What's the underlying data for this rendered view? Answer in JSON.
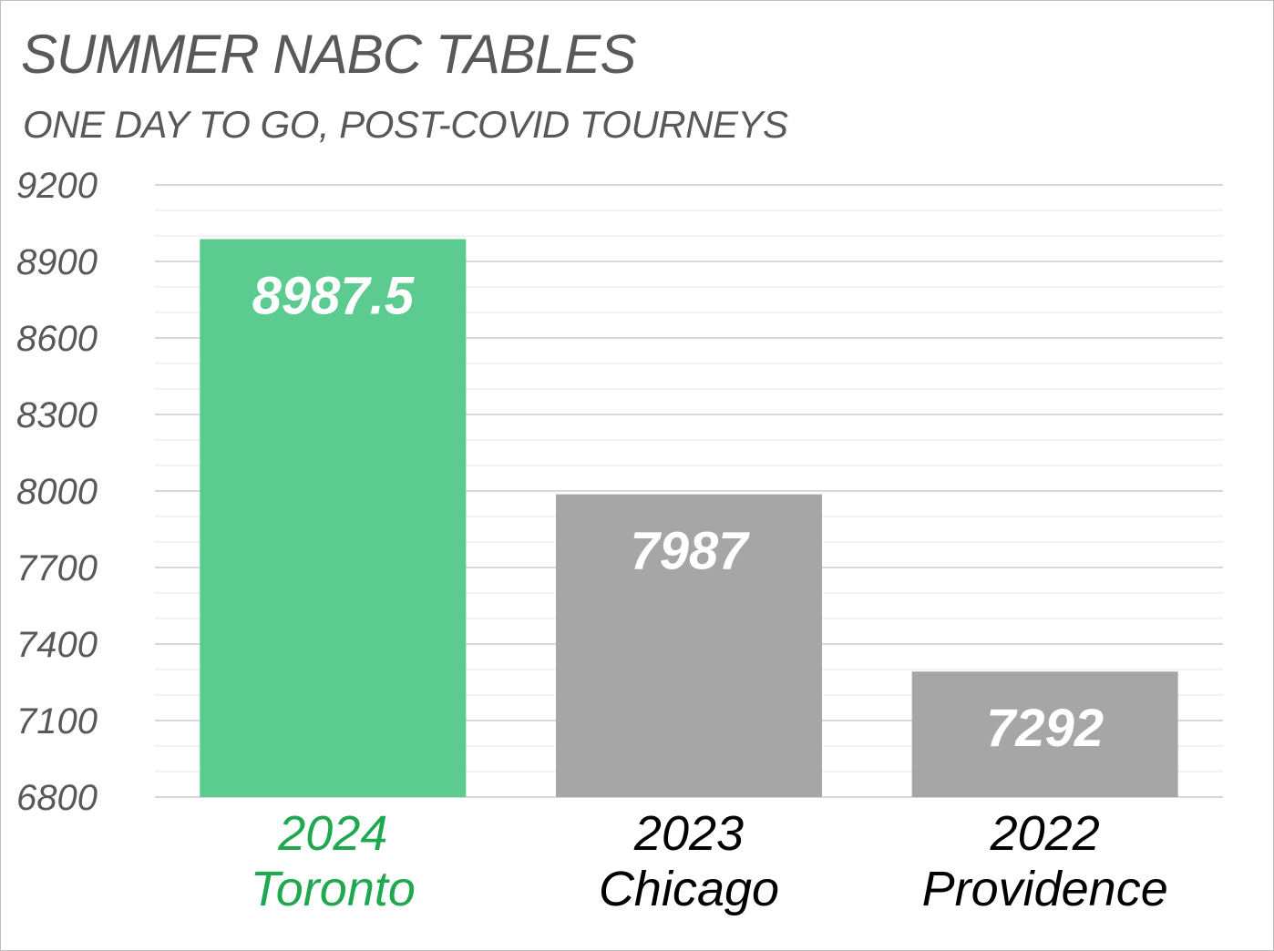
{
  "chart_data": {
    "type": "bar",
    "title": "SUMMER NABC TABLES",
    "subtitle": "ONE DAY TO GO, POST-COVID TOURNEYS",
    "categories": [
      [
        "2024",
        "Toronto"
      ],
      [
        "2023",
        "Chicago"
      ],
      [
        "2022",
        "Providence"
      ]
    ],
    "values": [
      8987.5,
      7987,
      7292
    ],
    "data_labels": [
      "8987.5",
      "7987",
      "7292"
    ],
    "ylim": [
      6800,
      9200
    ],
    "yticks": [
      6800,
      7100,
      7400,
      7700,
      8000,
      8300,
      8600,
      8900,
      9200
    ],
    "ytick_labels": [
      "6800",
      "7100",
      "7400",
      "7700",
      "8000",
      "8300",
      "8600",
      "8900",
      "9200"
    ],
    "minor_gridline_step": 100,
    "grid": true,
    "legend": "none",
    "colors": {
      "bars": [
        "#5ccb8f",
        "#a6a6a6",
        "#a6a6a6"
      ],
      "category_labels": [
        "#1fa84f",
        "#000000",
        "#000000"
      ],
      "major_grid": "#d9d9d9",
      "minor_grid": "#ededed",
      "axis_text": "#595959"
    }
  }
}
